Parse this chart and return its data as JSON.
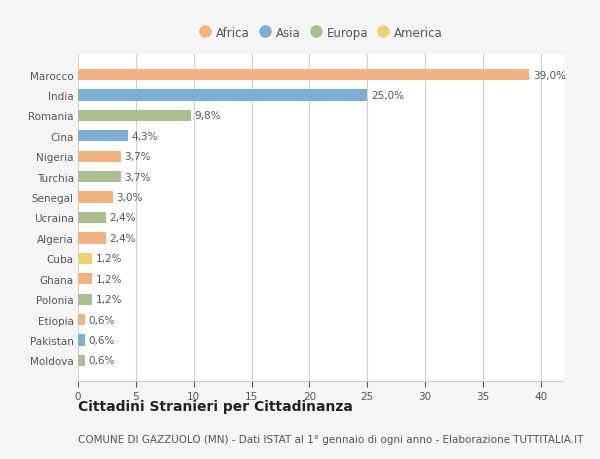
{
  "countries": [
    "Marocco",
    "India",
    "Romania",
    "Cina",
    "Nigeria",
    "Turchia",
    "Senegal",
    "Ucraina",
    "Algeria",
    "Cuba",
    "Ghana",
    "Polonia",
    "Etiopia",
    "Pakistan",
    "Moldova"
  ],
  "values": [
    39.0,
    25.0,
    9.8,
    4.3,
    3.7,
    3.7,
    3.0,
    2.4,
    2.4,
    1.2,
    1.2,
    1.2,
    0.6,
    0.6,
    0.6
  ],
  "labels": [
    "39,0%",
    "25,0%",
    "9,8%",
    "4,3%",
    "3,7%",
    "3,7%",
    "3,0%",
    "2,4%",
    "2,4%",
    "1,2%",
    "1,2%",
    "1,2%",
    "0,6%",
    "0,6%",
    "0,6%"
  ],
  "continents": [
    "Africa",
    "Asia",
    "Europa",
    "Asia",
    "Africa",
    "Europa",
    "Africa",
    "Europa",
    "Africa",
    "America",
    "Africa",
    "Europa",
    "Africa",
    "Asia",
    "Europa"
  ],
  "continent_colors": {
    "Africa": "#F2B27E",
    "Asia": "#7BAFD4",
    "Europa": "#AABF8E",
    "America": "#F0D070"
  },
  "legend_order": [
    "Africa",
    "Asia",
    "Europa",
    "America"
  ],
  "title": "Cittadini Stranieri per Cittadinanza",
  "subtitle": "COMUNE DI GAZZUOLO (MN) - Dati ISTAT al 1° gennaio di ogni anno - Elaborazione TUTTITALIA.IT",
  "xlim": [
    0,
    42
  ],
  "xticks": [
    0,
    5,
    10,
    15,
    20,
    25,
    30,
    35,
    40
  ],
  "background_color": "#f5f5f5",
  "plot_bg_color": "#ffffff",
  "grid_color": "#d0d0d0",
  "bar_height": 0.55,
  "title_fontsize": 10,
  "subtitle_fontsize": 7.5,
  "label_fontsize": 7.5,
  "tick_fontsize": 7.5,
  "legend_fontsize": 8.5
}
